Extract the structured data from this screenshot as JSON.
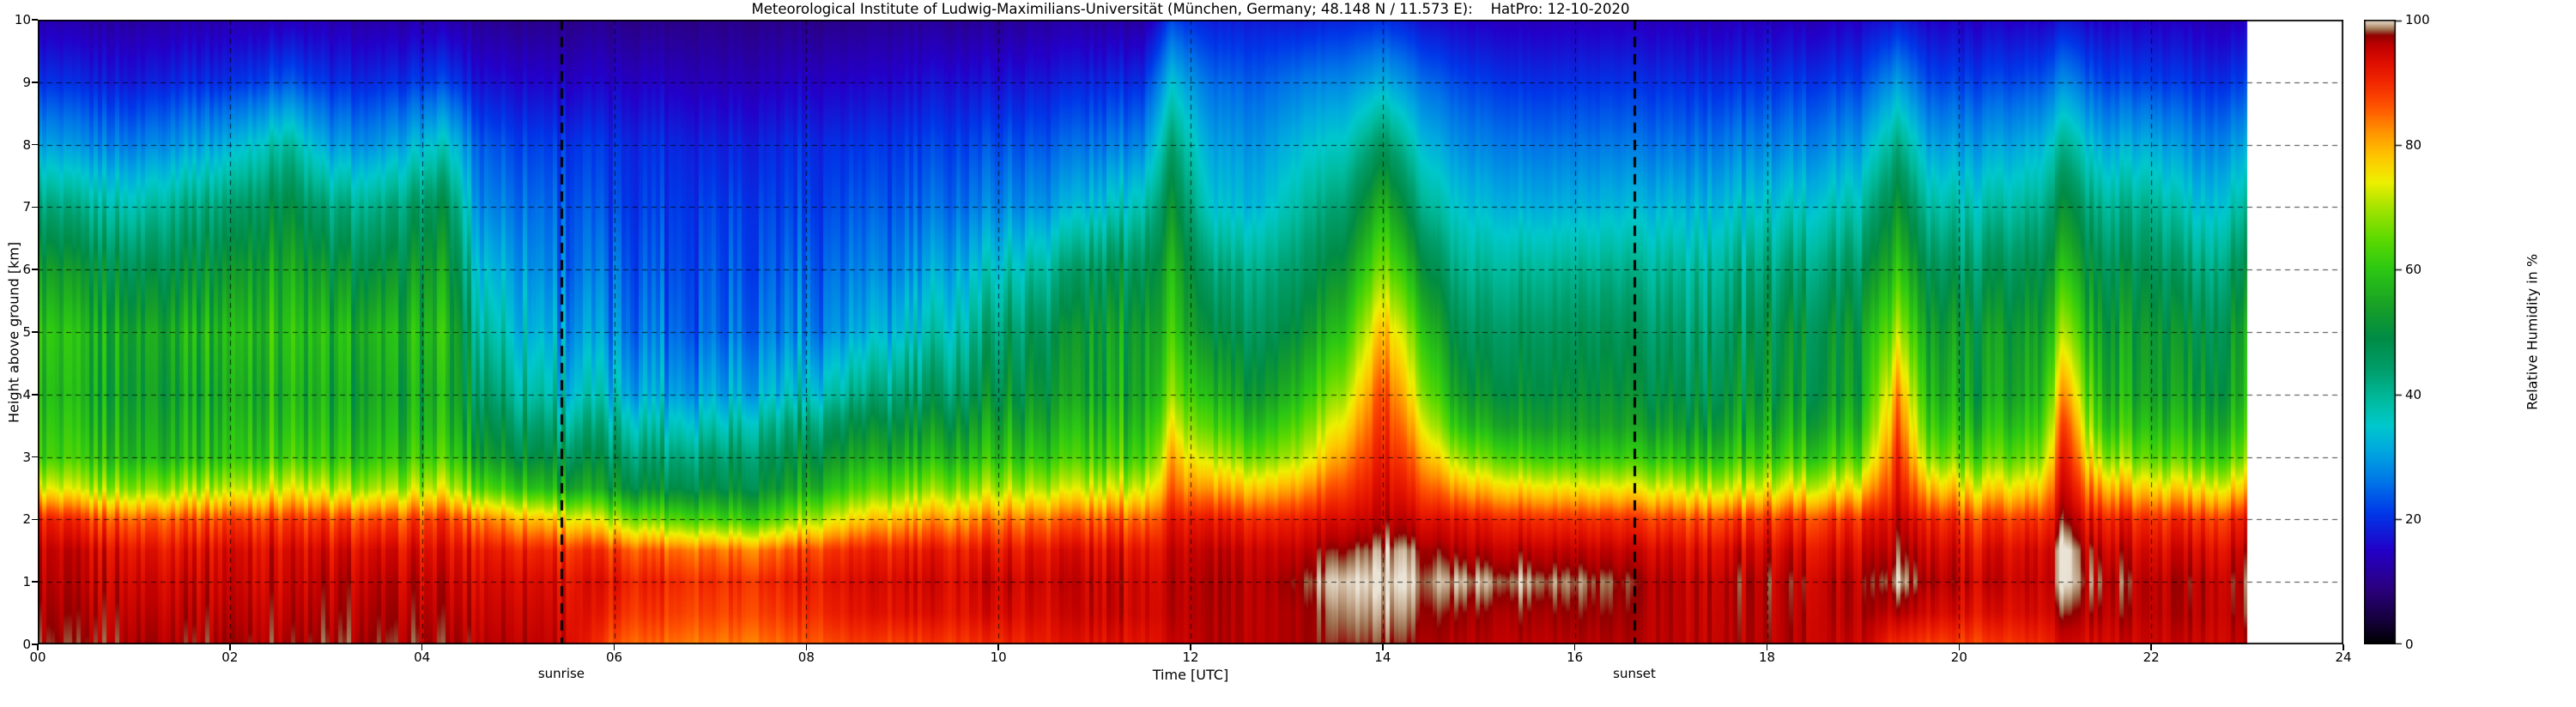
{
  "figure": {
    "background": "#ffffff"
  },
  "chart_data": {
    "type": "heatmap",
    "title": "Meteorological Institute of Ludwig-Maximilians-Universität (München, Germany; 48.148 N / 11.573 E):    HatPro: 12-10-2020",
    "xlabel": "Time [UTC]",
    "ylabel": "Height above ground [km]",
    "colorbar_label": "Relative Humidity in %",
    "xlim": [
      0,
      24
    ],
    "ylim": [
      0,
      10
    ],
    "clim": [
      0,
      100
    ],
    "grid_on": true,
    "x_ticks": [
      "00",
      "02",
      "04",
      "06",
      "08",
      "10",
      "12",
      "14",
      "16",
      "18",
      "20",
      "22",
      "24"
    ],
    "x_tick_values": [
      0,
      2,
      4,
      6,
      8,
      10,
      12,
      14,
      16,
      18,
      20,
      22,
      24
    ],
    "y_ticks": [
      "0",
      "1",
      "2",
      "3",
      "4",
      "5",
      "6",
      "7",
      "8",
      "9",
      "10"
    ],
    "y_tick_values": [
      0,
      1,
      2,
      3,
      4,
      5,
      6,
      7,
      8,
      9,
      10
    ],
    "colorbar_ticks": [
      "0",
      "20",
      "40",
      "60",
      "80",
      "100"
    ],
    "colorbar_tick_values": [
      0,
      20,
      40,
      60,
      80,
      100
    ],
    "annotations": [
      {
        "label": "sunrise",
        "time": 5.45
      },
      {
        "label": "sunset",
        "time": 16.62
      }
    ],
    "data_end_time": 23,
    "colormap": [
      [
        0,
        "#000000"
      ],
      [
        4,
        "#16003e"
      ],
      [
        9,
        "#2b0080"
      ],
      [
        15,
        "#2400c8"
      ],
      [
        21,
        "#0038e8"
      ],
      [
        26,
        "#0076e8"
      ],
      [
        31,
        "#00a8e0"
      ],
      [
        35,
        "#00c8cd"
      ],
      [
        39,
        "#00bca0"
      ],
      [
        44,
        "#009e6b"
      ],
      [
        49,
        "#008c46"
      ],
      [
        54,
        "#18a028"
      ],
      [
        60,
        "#2cc814"
      ],
      [
        65,
        "#5eda00"
      ],
      [
        70,
        "#a8e400"
      ],
      [
        74,
        "#eef000"
      ],
      [
        78,
        "#ffc800"
      ],
      [
        82,
        "#ff9400"
      ],
      [
        86,
        "#ff5500"
      ],
      [
        90,
        "#f22800"
      ],
      [
        93,
        "#e01000"
      ],
      [
        96,
        "#bd0000"
      ],
      [
        97.5,
        "#900000"
      ],
      [
        98.4,
        "#9c6c4c"
      ],
      [
        99.2,
        "#c9b096"
      ],
      [
        100,
        "#eae3d5"
      ]
    ],
    "grid": {
      "times": [
        0,
        0.5,
        1,
        1.5,
        2,
        2.6,
        3,
        3.5,
        4.25,
        4.6,
        5,
        5.5,
        6,
        6.5,
        7,
        7.5,
        8,
        8.5,
        9,
        9.5,
        10,
        10.5,
        11,
        11.5,
        11.8,
        12.2,
        12.7,
        13.2,
        13.6,
        14,
        14.4,
        14.8,
        15.5,
        16.2,
        17,
        17.7,
        18.4,
        19,
        19.35,
        19.7,
        20.3,
        20.8,
        21.1,
        21.5,
        22,
        22.5,
        23
      ],
      "heights": [
        0,
        0.5,
        1,
        1.5,
        2,
        2.5,
        3,
        3.5,
        4,
        5,
        6,
        7,
        8,
        9,
        10
      ],
      "rh": [
        [
          97,
          96,
          95,
          94,
          90,
          72,
          60,
          58,
          56,
          58,
          52,
          42,
          30,
          20,
          13
        ],
        [
          97,
          96,
          95,
          94,
          88,
          70,
          60,
          57,
          55,
          56,
          50,
          40,
          28,
          19,
          12
        ],
        [
          97,
          96,
          95,
          93,
          86,
          68,
          58,
          56,
          54,
          55,
          48,
          38,
          27,
          18,
          12
        ],
        [
          97,
          96,
          95,
          93,
          87,
          70,
          59,
          57,
          55,
          57,
          50,
          42,
          30,
          20,
          13
        ],
        [
          97,
          96,
          95,
          94,
          88,
          71,
          60,
          58,
          56,
          58,
          52,
          44,
          32,
          20,
          13
        ],
        [
          97,
          96,
          95,
          94,
          89,
          74,
          63,
          60,
          58,
          60,
          56,
          50,
          40,
          24,
          14
        ],
        [
          97,
          96,
          95,
          93,
          87,
          70,
          59,
          56,
          54,
          56,
          50,
          42,
          30,
          20,
          13
        ],
        [
          97,
          96,
          95,
          93,
          86,
          68,
          58,
          55,
          53,
          55,
          48,
          40,
          28,
          19,
          12
        ],
        [
          97,
          96,
          95,
          93,
          88,
          72,
          62,
          58,
          56,
          58,
          54,
          48,
          36,
          22,
          13
        ],
        [
          96,
          95,
          94,
          92,
          84,
          64,
          54,
          50,
          46,
          40,
          34,
          28,
          24,
          17,
          11
        ],
        [
          96,
          95,
          94,
          91,
          80,
          60,
          50,
          45,
          40,
          34,
          30,
          26,
          22,
          16,
          10
        ],
        [
          95,
          94,
          93,
          90,
          76,
          56,
          48,
          42,
          36,
          30,
          26,
          24,
          21,
          15,
          10
        ],
        [
          86,
          90,
          92,
          88,
          70,
          52,
          46,
          40,
          34,
          28,
          25,
          22,
          20,
          15,
          10
        ],
        [
          85,
          89,
          91,
          86,
          66,
          50,
          44,
          38,
          32,
          27,
          24,
          22,
          20,
          15,
          10
        ],
        [
          84,
          88,
          90,
          85,
          64,
          50,
          45,
          38,
          32,
          26,
          24,
          22,
          19,
          14,
          10
        ],
        [
          84,
          88,
          90,
          84,
          62,
          50,
          46,
          40,
          33,
          27,
          24,
          22,
          19,
          14,
          10
        ],
        [
          86,
          90,
          92,
          88,
          70,
          56,
          50,
          44,
          36,
          28,
          25,
          22,
          20,
          15,
          10
        ],
        [
          88,
          92,
          93,
          90,
          76,
          62,
          54,
          48,
          40,
          30,
          26,
          23,
          20,
          15,
          10
        ],
        [
          88,
          93,
          94,
          91,
          80,
          66,
          56,
          50,
          44,
          34,
          28,
          24,
          21,
          16,
          11
        ],
        [
          89,
          93,
          94,
          92,
          82,
          68,
          58,
          52,
          46,
          38,
          32,
          26,
          22,
          17,
          11
        ],
        [
          90,
          94,
          95,
          92,
          84,
          70,
          60,
          55,
          50,
          44,
          36,
          28,
          23,
          17,
          11
        ],
        [
          92,
          94,
          95,
          93,
          85,
          71,
          61,
          56,
          52,
          48,
          40,
          30,
          24,
          18,
          12
        ],
        [
          93,
          95,
          95,
          93,
          86,
          72,
          62,
          58,
          54,
          52,
          46,
          34,
          26,
          19,
          12
        ],
        [
          93,
          95,
          95,
          93,
          86,
          73,
          63,
          59,
          56,
          54,
          48,
          38,
          28,
          20,
          12
        ],
        [
          95,
          96,
          96,
          95,
          92,
          85,
          80,
          74,
          68,
          62,
          58,
          52,
          44,
          34,
          22
        ],
        [
          96,
          96,
          96,
          95,
          91,
          80,
          70,
          62,
          56,
          48,
          42,
          34,
          30,
          25,
          18
        ],
        [
          96,
          96,
          96,
          95,
          90,
          78,
          66,
          58,
          52,
          46,
          41,
          33,
          29,
          24,
          18
        ],
        [
          97,
          97,
          98,
          96,
          92,
          82,
          72,
          66,
          60,
          52,
          46,
          40,
          34,
          27,
          18
        ],
        [
          98,
          99,
          100,
          98,
          94,
          88,
          82,
          76,
          70,
          60,
          52,
          44,
          36,
          28,
          19
        ],
        [
          98,
          99,
          100,
          99,
          96,
          94,
          92,
          90,
          88,
          80,
          68,
          58,
          46,
          32,
          20
        ],
        [
          97,
          98,
          99,
          98,
          94,
          88,
          82,
          76,
          70,
          62,
          52,
          42,
          34,
          26,
          17
        ],
        [
          96,
          97,
          99,
          96,
          92,
          80,
          68,
          58,
          52,
          46,
          40,
          34,
          28,
          22,
          15
        ],
        [
          96,
          97,
          99,
          96,
          90,
          76,
          62,
          54,
          50,
          46,
          40,
          32,
          26,
          20,
          14
        ],
        [
          96,
          97,
          98,
          95,
          89,
          74,
          60,
          53,
          50,
          46,
          40,
          32,
          26,
          20,
          14
        ],
        [
          96,
          96,
          96,
          94,
          88,
          73,
          60,
          53,
          49,
          45,
          40,
          33,
          26,
          20,
          14
        ],
        [
          96,
          96,
          96,
          94,
          88,
          72,
          60,
          54,
          50,
          46,
          41,
          34,
          27,
          20,
          14
        ],
        [
          96,
          96,
          96,
          94,
          89,
          74,
          62,
          56,
          52,
          50,
          44,
          36,
          28,
          21,
          14
        ],
        [
          95,
          96,
          96,
          94,
          90,
          76,
          64,
          58,
          54,
          52,
          46,
          38,
          30,
          22,
          15
        ],
        [
          90,
          96,
          99,
          97,
          95,
          92,
          90,
          86,
          82,
          70,
          60,
          52,
          42,
          30,
          18
        ],
        [
          88,
          94,
          96,
          94,
          90,
          78,
          66,
          60,
          56,
          52,
          46,
          38,
          30,
          22,
          15
        ],
        [
          88,
          93,
          95,
          93,
          88,
          75,
          64,
          58,
          54,
          52,
          46,
          38,
          30,
          22,
          15
        ],
        [
          90,
          94,
          95,
          94,
          89,
          77,
          66,
          60,
          56,
          53,
          48,
          40,
          32,
          23,
          15
        ],
        [
          94,
          97,
          99,
          99,
          96,
          93,
          90,
          86,
          80,
          68,
          58,
          50,
          40,
          28,
          17
        ],
        [
          94,
          96,
          97,
          95,
          91,
          80,
          68,
          60,
          56,
          52,
          47,
          40,
          31,
          22,
          15
        ],
        [
          95,
          96,
          96,
          94,
          90,
          77,
          65,
          59,
          55,
          53,
          48,
          41,
          32,
          22,
          15
        ],
        [
          95,
          96,
          96,
          94,
          89,
          75,
          62,
          56,
          52,
          48,
          42,
          34,
          27,
          20,
          14
        ],
        [
          95,
          96,
          96,
          94,
          90,
          76,
          64,
          58,
          54,
          52,
          46,
          38,
          30,
          21,
          14
        ]
      ]
    }
  }
}
